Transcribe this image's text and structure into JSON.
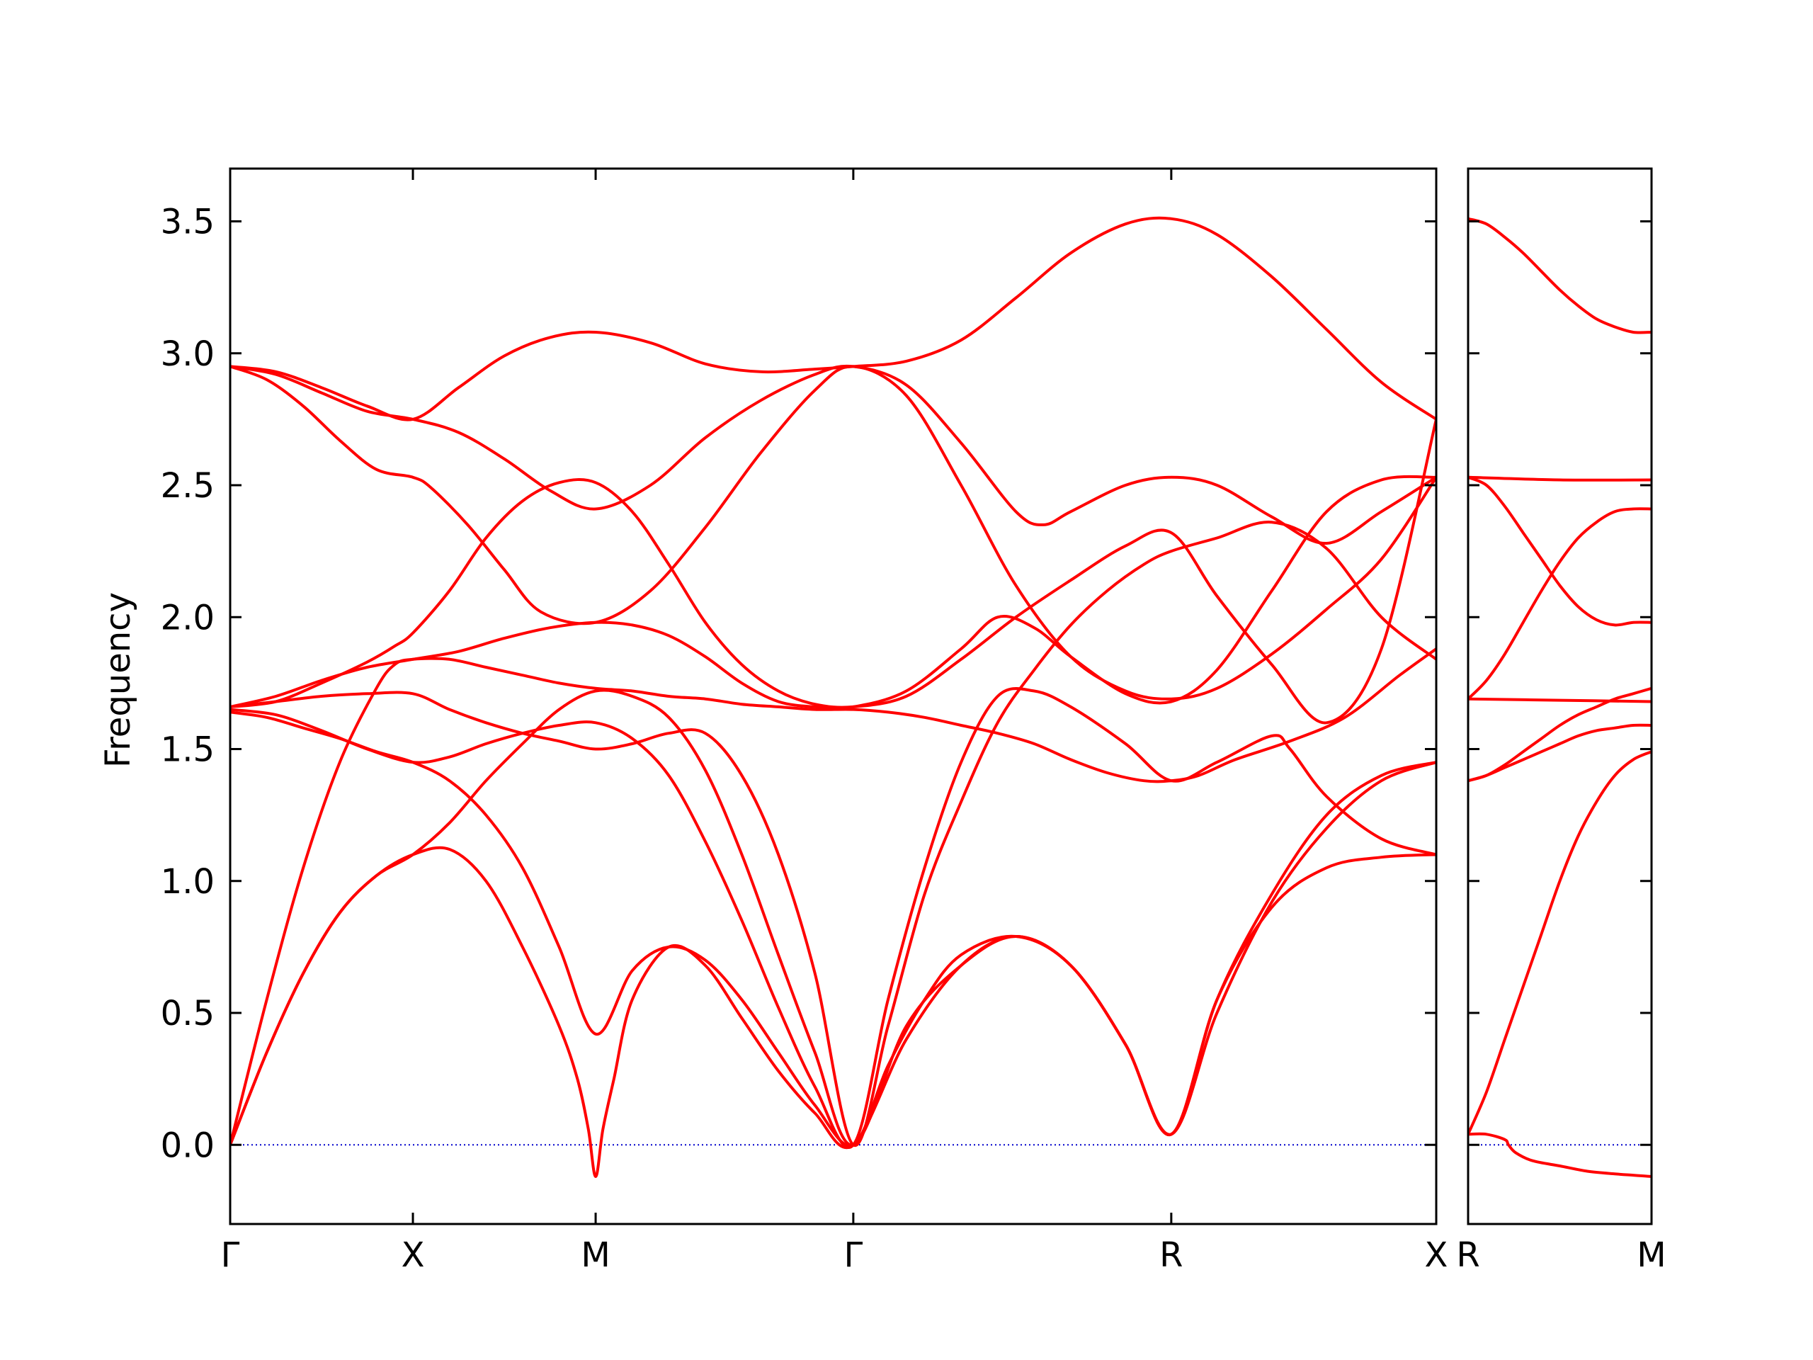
{
  "chart_data": {
    "type": "line",
    "title": "",
    "ylabel": "Frequency",
    "xlabel": "",
    "ylim": [
      -0.3,
      3.7
    ],
    "grid": false,
    "legend": "none",
    "line_color": "#ff0000",
    "zero_line_color": "#0000cc",
    "yticks": [
      0.0,
      0.5,
      1.0,
      1.5,
      2.0,
      2.5,
      3.0,
      3.5
    ],
    "ytick_labels": [
      "0.0",
      "0.5",
      "1.0",
      "1.5",
      "2.0",
      "2.5",
      "3.0",
      "3.5"
    ],
    "panels": [
      {
        "id": "main",
        "xlim": [
          0,
          6.6
        ],
        "kpoints": [
          {
            "label": "Γ",
            "x": 0.0
          },
          {
            "label": "X",
            "x": 1.0
          },
          {
            "label": "M",
            "x": 2.0
          },
          {
            "label": "Γ",
            "x": 3.41
          },
          {
            "label": "R",
            "x": 5.15
          },
          {
            "label": "X",
            "x": 6.6
          }
        ],
        "series": [
          {
            "x": [
              0,
              0.25,
              0.5,
              0.75,
              1.0,
              1.25,
              1.5,
              1.75,
              2.0,
              2.3,
              2.6,
              2.9,
              3.2,
              3.41,
              3.7,
              4.0,
              4.3,
              4.6,
              4.9,
              5.15,
              5.4,
              5.7,
              6.0,
              6.3,
              6.6
            ],
            "y": [
              2.95,
              2.93,
              2.87,
              2.8,
              2.75,
              2.87,
              2.99,
              3.06,
              3.08,
              3.04,
              2.96,
              2.93,
              2.94,
              2.95,
              2.97,
              3.05,
              3.21,
              3.38,
              3.49,
              3.51,
              3.45,
              3.29,
              3.09,
              2.89,
              2.75
            ]
          },
          {
            "x": [
              0,
              0.25,
              0.5,
              0.75,
              1.0,
              1.25,
              1.5,
              1.75,
              2.0,
              2.3,
              2.6,
              2.9,
              3.2,
              3.41,
              3.7,
              4.0,
              4.3,
              4.45,
              4.6,
              4.9,
              5.15,
              5.4,
              5.7,
              6.0,
              6.3,
              6.6
            ],
            "y": [
              2.95,
              2.92,
              2.85,
              2.78,
              2.75,
              2.7,
              2.6,
              2.48,
              2.41,
              2.5,
              2.68,
              2.82,
              2.92,
              2.95,
              2.88,
              2.66,
              2.4,
              2.35,
              2.4,
              2.5,
              2.53,
              2.5,
              2.38,
              2.28,
              2.4,
              2.53
            ]
          },
          {
            "x": [
              0,
              0.2,
              0.4,
              0.6,
              0.8,
              1.0,
              1.1,
              1.3,
              1.5,
              1.7,
              2.0,
              2.3,
              2.6,
              2.9,
              3.2,
              3.41,
              3.7,
              4.0,
              4.3,
              4.6,
              4.9,
              5.15,
              5.4,
              5.7,
              6.0,
              6.3,
              6.6
            ],
            "y": [
              2.95,
              2.9,
              2.8,
              2.67,
              2.56,
              2.53,
              2.49,
              2.35,
              2.18,
              2.02,
              1.98,
              2.1,
              2.34,
              2.62,
              2.86,
              2.95,
              2.84,
              2.5,
              2.12,
              1.85,
              1.72,
              1.69,
              1.73,
              1.86,
              2.03,
              2.22,
              2.53
            ]
          },
          {
            "x": [
              0,
              0.25,
              0.5,
              0.75,
              0.9,
              1.0,
              1.2,
              1.4,
              1.6,
              1.8,
              2.0,
              2.2,
              2.4,
              2.6,
              2.8,
              3.0,
              3.2,
              3.41,
              3.7,
              4.0,
              4.3,
              4.6,
              4.9,
              5.15,
              5.4,
              5.7,
              6.0,
              6.3,
              6.6
            ],
            "y": [
              1.66,
              1.68,
              1.75,
              1.83,
              1.89,
              1.94,
              2.1,
              2.3,
              2.44,
              2.51,
              2.51,
              2.4,
              2.2,
              1.98,
              1.82,
              1.72,
              1.67,
              1.66,
              1.7,
              1.84,
              2.0,
              2.14,
              2.27,
              2.32,
              2.08,
              1.82,
              1.6,
              1.88,
              2.75
            ]
          },
          {
            "x": [
              0,
              0.25,
              0.5,
              0.75,
              1.0,
              1.25,
              1.5,
              1.75,
              2.0,
              2.2,
              2.4,
              2.6,
              2.8,
              3.0,
              3.2,
              3.41,
              3.7,
              4.0,
              4.2,
              4.4,
              4.6,
              4.9,
              5.15,
              5.4,
              5.7,
              6.0,
              6.3,
              6.6
            ],
            "y": [
              1.66,
              1.7,
              1.76,
              1.81,
              1.84,
              1.87,
              1.92,
              1.96,
              1.98,
              1.97,
              1.93,
              1.85,
              1.75,
              1.68,
              1.66,
              1.66,
              1.72,
              1.88,
              2.0,
              1.96,
              1.85,
              1.71,
              1.68,
              1.8,
              2.1,
              2.4,
              2.52,
              2.53
            ]
          },
          {
            "x": [
              0,
              0.2,
              0.4,
              0.6,
              0.8,
              0.9,
              1.0,
              1.2,
              1.4,
              1.6,
              1.8,
              2.0,
              2.2,
              2.4,
              2.6,
              2.8,
              3.0,
              3.2,
              3.41,
              3.6,
              3.8,
              4.0,
              4.2,
              4.4,
              4.6,
              4.8,
              5.0,
              5.15,
              5.3,
              5.5,
              5.8,
              6.1,
              6.4,
              6.6
            ],
            "y": [
              0.0,
              0.55,
              1.05,
              1.45,
              1.73,
              1.82,
              1.84,
              1.84,
              1.81,
              1.78,
              1.75,
              1.73,
              1.72,
              1.7,
              1.69,
              1.67,
              1.66,
              1.65,
              1.65,
              1.64,
              1.62,
              1.59,
              1.56,
              1.52,
              1.46,
              1.41,
              1.38,
              1.38,
              1.4,
              1.46,
              1.53,
              1.62,
              1.78,
              1.88
            ]
          },
          {
            "x": [
              0,
              0.25,
              0.5,
              0.75,
              1.0,
              1.2,
              1.4,
              1.6,
              1.8,
              2.0,
              2.2,
              2.4,
              2.6,
              2.8,
              3.0,
              3.2,
              3.41,
              3.6,
              3.8,
              4.0,
              4.2,
              4.4,
              4.6,
              4.8,
              5.0,
              5.15,
              5.4,
              5.7,
              6.0,
              6.3,
              6.6
            ],
            "y": [
              1.66,
              1.68,
              1.7,
              1.71,
              1.71,
              1.65,
              1.6,
              1.56,
              1.53,
              1.5,
              1.52,
              1.56,
              1.56,
              1.4,
              1.1,
              0.65,
              0.0,
              0.45,
              0.95,
              1.3,
              1.6,
              1.8,
              1.97,
              2.1,
              2.2,
              2.25,
              2.3,
              2.36,
              2.26,
              2.0,
              1.84
            ]
          },
          {
            "x": [
              0,
              0.25,
              0.5,
              0.75,
              1.0,
              1.2,
              1.4,
              1.6,
              1.8,
              2.0,
              2.2,
              2.4,
              2.6,
              2.8,
              3.0,
              3.2,
              3.41,
              3.6,
              3.8,
              4.0,
              4.2,
              4.4,
              4.6,
              4.9,
              5.15,
              5.4,
              5.7,
              5.8,
              6.0,
              6.3,
              6.6
            ],
            "y": [
              1.65,
              1.63,
              1.57,
              1.5,
              1.45,
              1.47,
              1.52,
              1.56,
              1.59,
              1.6,
              1.54,
              1.4,
              1.15,
              0.85,
              0.52,
              0.22,
              0.0,
              0.55,
              1.05,
              1.45,
              1.7,
              1.72,
              1.66,
              1.52,
              1.38,
              1.45,
              1.55,
              1.5,
              1.32,
              1.16,
              1.1
            ]
          },
          {
            "x": [
              0,
              0.2,
              0.4,
              0.6,
              0.8,
              1.0,
              1.2,
              1.4,
              1.6,
              1.8,
              2.0,
              2.2,
              2.4,
              2.6,
              2.8,
              3.0,
              3.2,
              3.41,
              3.6,
              3.8,
              4.0,
              4.3,
              4.6,
              4.9,
              5.15,
              5.4,
              5.7,
              6.0,
              6.3,
              6.6
            ],
            "y": [
              1.64,
              1.62,
              1.58,
              1.54,
              1.49,
              1.45,
              1.38,
              1.25,
              1.05,
              0.75,
              0.42,
              0.66,
              0.75,
              0.7,
              0.55,
              0.35,
              0.15,
              0.0,
              0.3,
              0.55,
              0.72,
              0.79,
              0.68,
              0.38,
              0.04,
              0.55,
              0.9,
              1.05,
              1.09,
              1.1
            ]
          },
          {
            "x": [
              0,
              0.2,
              0.4,
              0.6,
              0.8,
              1.0,
              1.2,
              1.4,
              1.6,
              1.8,
              1.9,
              1.96,
              2.0,
              2.04,
              2.1,
              2.2,
              2.4,
              2.6,
              2.8,
              3.0,
              3.2,
              3.41,
              3.7,
              4.0,
              4.3,
              4.6,
              4.9,
              5.15,
              5.4,
              5.7,
              6.0,
              6.3,
              6.6
            ],
            "y": [
              0.0,
              0.35,
              0.65,
              0.88,
              1.02,
              1.1,
              1.12,
              1.0,
              0.75,
              0.45,
              0.25,
              0.06,
              -0.12,
              0.06,
              0.25,
              0.55,
              0.75,
              0.68,
              0.48,
              0.28,
              0.12,
              0.0,
              0.4,
              0.68,
              0.79,
              0.68,
              0.38,
              0.04,
              0.55,
              0.95,
              1.25,
              1.4,
              1.45
            ]
          },
          {
            "x": [
              0,
              0.2,
              0.4,
              0.6,
              0.8,
              1.0,
              1.2,
              1.4,
              1.6,
              1.8,
              2.0,
              2.2,
              2.4,
              2.6,
              2.8,
              3.0,
              3.2,
              3.41,
              3.7,
              4.0,
              4.3,
              4.6,
              4.9,
              5.15,
              5.4,
              5.7,
              6.0,
              6.3,
              6.6
            ],
            "y": [
              0.0,
              0.35,
              0.65,
              0.88,
              1.02,
              1.1,
              1.22,
              1.38,
              1.52,
              1.65,
              1.72,
              1.7,
              1.62,
              1.42,
              1.1,
              0.72,
              0.35,
              0.0,
              0.45,
              0.68,
              0.79,
              0.68,
              0.38,
              0.04,
              0.5,
              0.92,
              1.2,
              1.38,
              1.45
            ]
          }
        ]
      },
      {
        "id": "side",
        "xlim": [
          0,
          1.0
        ],
        "kpoints": [
          {
            "label": "R",
            "x": 0.0
          },
          {
            "label": "M",
            "x": 1.0
          }
        ],
        "series": [
          {
            "x": [
              0,
              0.1,
              0.2,
              0.3,
              0.4,
              0.5,
              0.6,
              0.7,
              0.8,
              0.9,
              1.0
            ],
            "y": [
              3.51,
              3.49,
              3.44,
              3.38,
              3.31,
              3.24,
              3.18,
              3.13,
              3.1,
              3.08,
              3.08
            ]
          },
          {
            "x": [
              0,
              0.5,
              1.0
            ],
            "y": [
              2.53,
              2.52,
              2.52
            ]
          },
          {
            "x": [
              0,
              0.1,
              0.2,
              0.3,
              0.4,
              0.5,
              0.6,
              0.7,
              0.8,
              0.9,
              1.0
            ],
            "y": [
              2.53,
              2.5,
              2.42,
              2.32,
              2.22,
              2.12,
              2.04,
              1.99,
              1.97,
              1.98,
              1.98
            ]
          },
          {
            "x": [
              0,
              0.1,
              0.2,
              0.3,
              0.4,
              0.5,
              0.6,
              0.7,
              0.8,
              0.9,
              1.0
            ],
            "y": [
              1.69,
              1.76,
              1.86,
              1.98,
              2.1,
              2.21,
              2.3,
              2.36,
              2.4,
              2.41,
              2.41
            ]
          },
          {
            "x": [
              0,
              0.5,
              1.0
            ],
            "y": [
              1.69,
              1.685,
              1.68
            ]
          },
          {
            "x": [
              0,
              0.1,
              0.2,
              0.3,
              0.4,
              0.5,
              0.6,
              0.7,
              0.8,
              0.9,
              1.0
            ],
            "y": [
              1.38,
              1.4,
              1.44,
              1.49,
              1.54,
              1.59,
              1.63,
              1.66,
              1.69,
              1.71,
              1.73
            ]
          },
          {
            "x": [
              0,
              0.1,
              0.2,
              0.3,
              0.4,
              0.5,
              0.6,
              0.7,
              0.8,
              0.9,
              1.0
            ],
            "y": [
              1.38,
              1.4,
              1.43,
              1.46,
              1.49,
              1.52,
              1.55,
              1.57,
              1.58,
              1.59,
              1.59
            ]
          },
          {
            "x": [
              0,
              0.1,
              0.2,
              0.3,
              0.4,
              0.5,
              0.6,
              0.7,
              0.8,
              0.9,
              1.0
            ],
            "y": [
              0.04,
              0.2,
              0.4,
              0.6,
              0.8,
              1.0,
              1.17,
              1.3,
              1.4,
              1.46,
              1.49
            ]
          },
          {
            "x": [
              0,
              0.1,
              0.2,
              0.22,
              0.26,
              0.35,
              0.5,
              0.65,
              0.8,
              0.9,
              1.0
            ],
            "y": [
              0.04,
              0.04,
              0.02,
              0.0,
              -0.03,
              -0.06,
              -0.08,
              -0.1,
              -0.11,
              -0.115,
              -0.12
            ]
          }
        ]
      }
    ]
  }
}
